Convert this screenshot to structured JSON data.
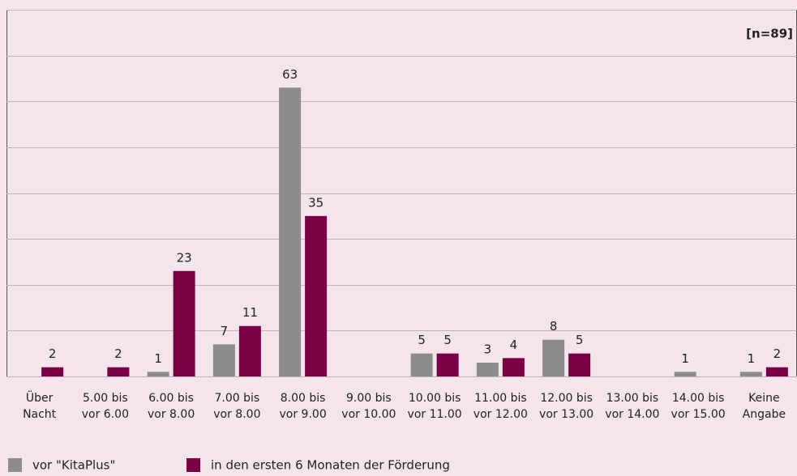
{
  "chart_data": {
    "type": "bar",
    "annotation": "[n=89]",
    "categories": [
      [
        "Über",
        "Nacht"
      ],
      [
        "5.00 bis",
        "vor 6.00"
      ],
      [
        "6.00 bis",
        "vor 8.00"
      ],
      [
        "7.00 bis",
        "vor 8.00"
      ],
      [
        "8.00 bis",
        "vor 9.00"
      ],
      [
        "9.00 bis",
        "vor 10.00"
      ],
      [
        "10.00 bis",
        "vor 11.00"
      ],
      [
        "11.00 bis",
        "vor 12.00"
      ],
      [
        "12.00 bis",
        "vor 13.00"
      ],
      [
        "13.00 bis",
        "vor 14.00"
      ],
      [
        "14.00 bis",
        "vor 15.00"
      ],
      [
        "Keine",
        "Angabe"
      ]
    ],
    "series": [
      {
        "name": "vor \"KitaPlus\"",
        "color": "#8c8c8c",
        "values": [
          null,
          null,
          1,
          7,
          63,
          null,
          5,
          3,
          8,
          null,
          1,
          1
        ]
      },
      {
        "name": "in den ersten 6 Monaten der Förderung",
        "color": "#7a0046",
        "values": [
          2,
          2,
          23,
          11,
          35,
          null,
          5,
          4,
          5,
          null,
          null,
          2
        ]
      }
    ],
    "ylim": [
      0,
      80
    ],
    "yticks": [
      0,
      10,
      20,
      30,
      40,
      50,
      60,
      70,
      80
    ],
    "grid": true
  }
}
